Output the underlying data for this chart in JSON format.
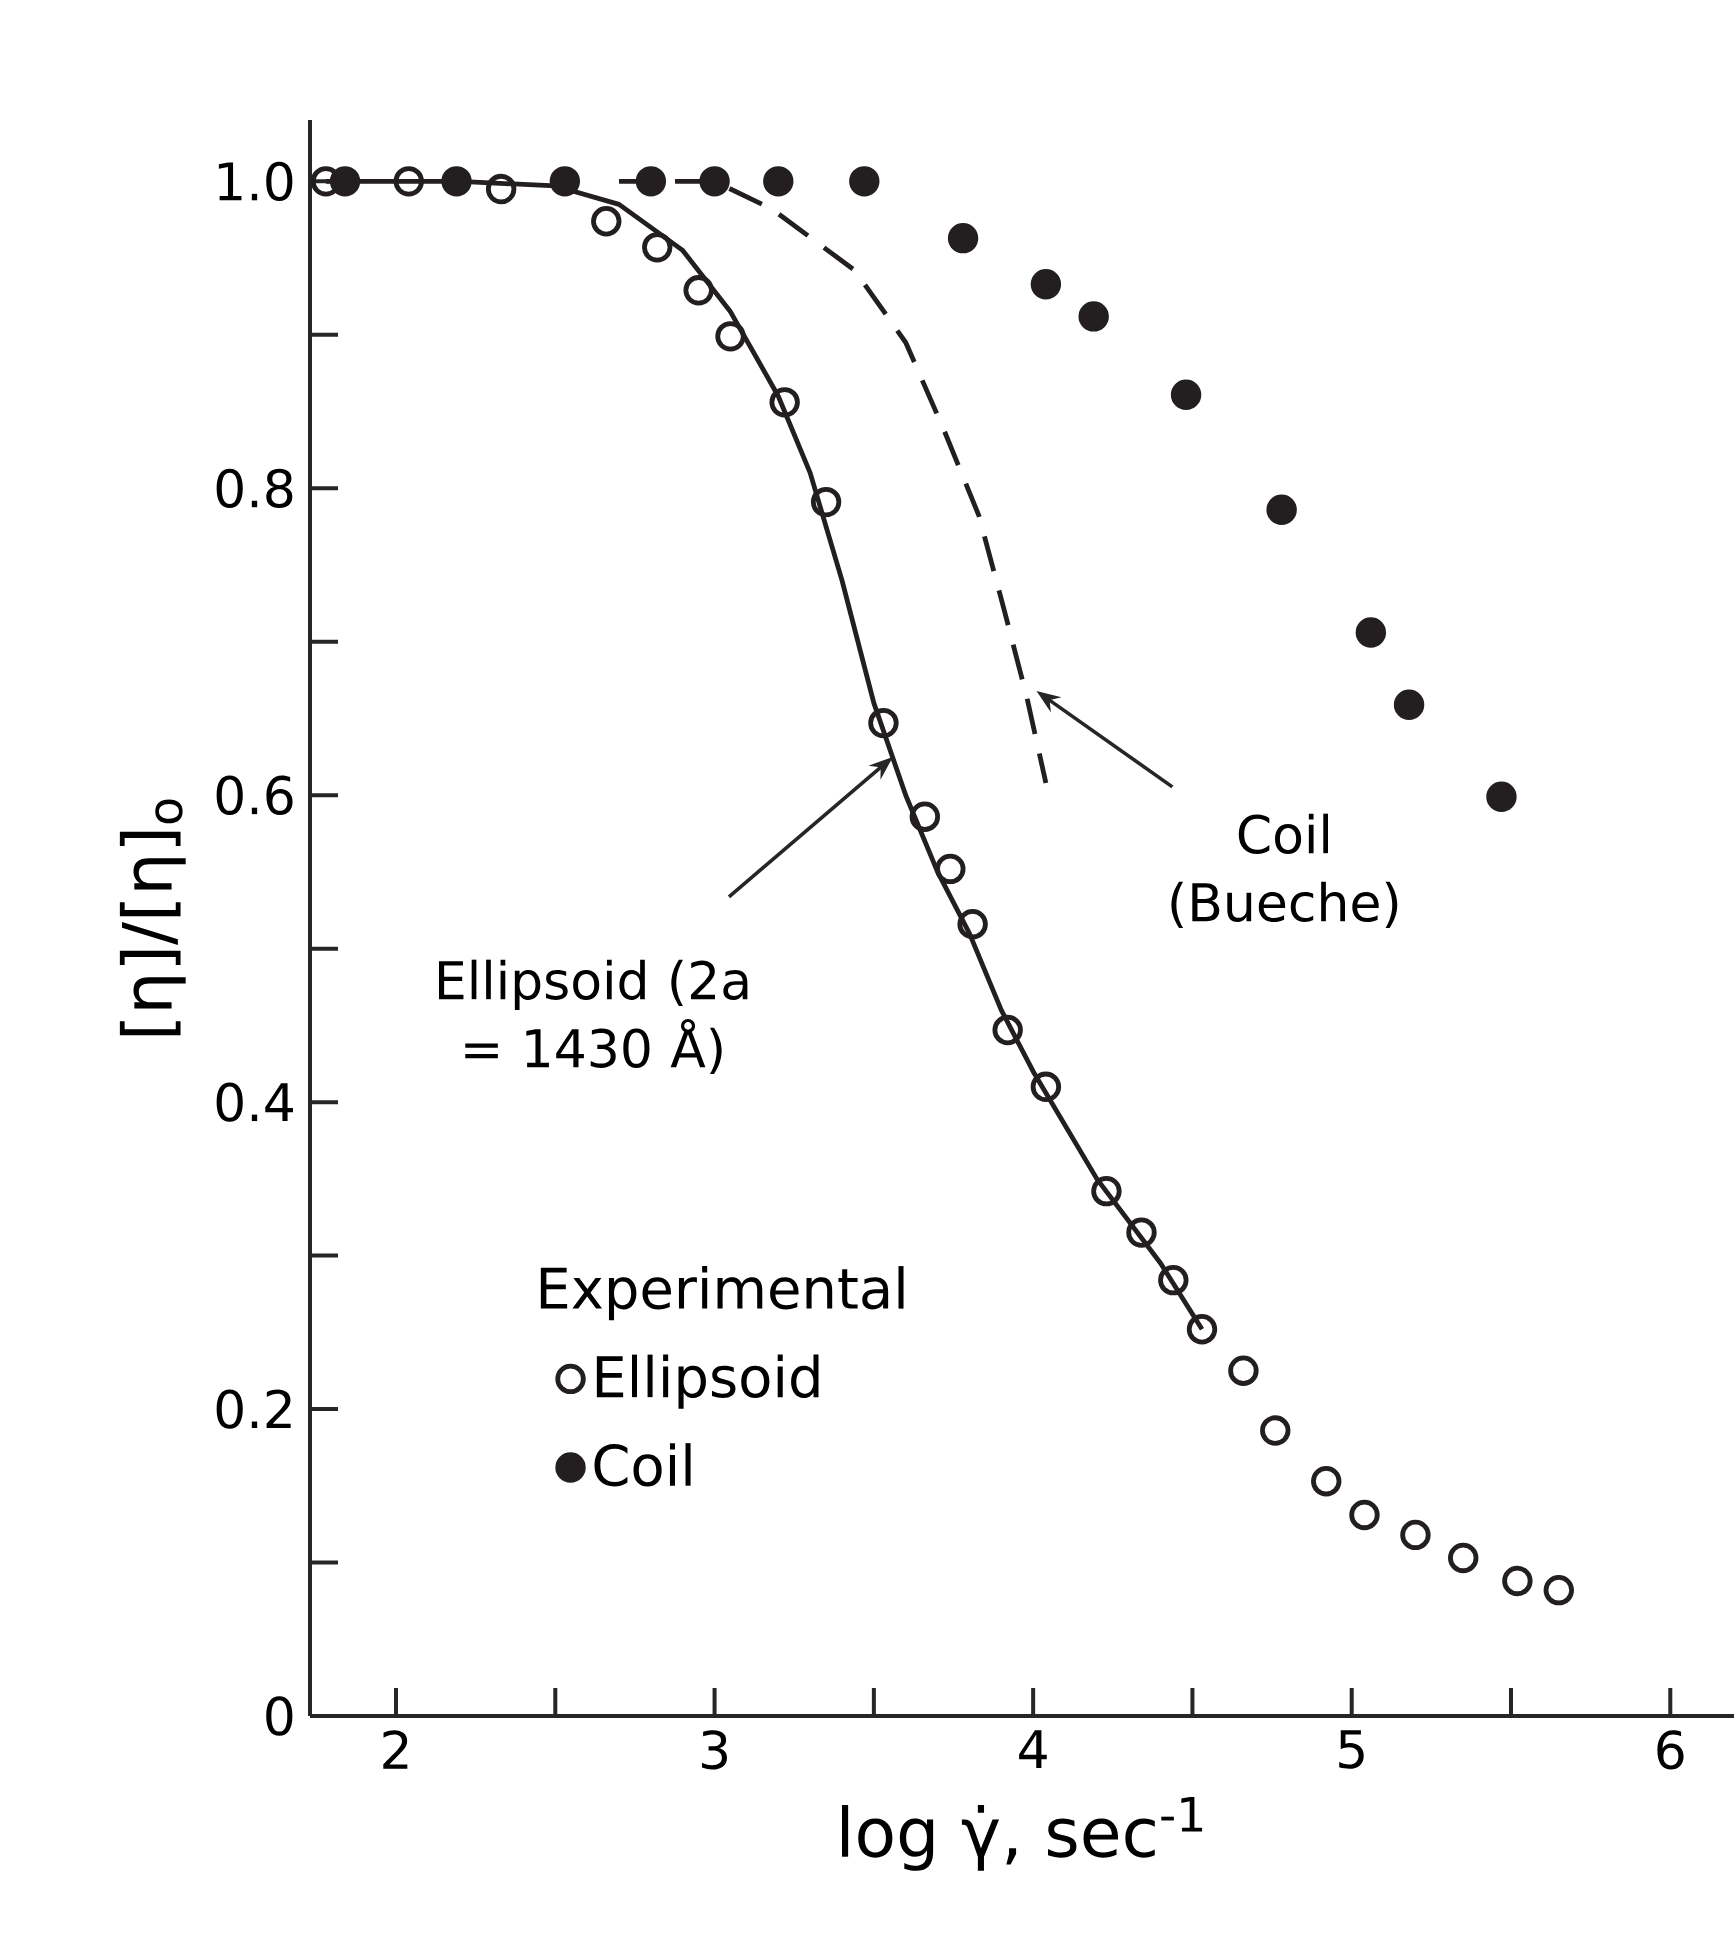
{
  "chart_data": {
    "type": "scatter",
    "xlabel": "log γ̇, sec$^{-1}$",
    "ylabel": "[η]/[η]$_{o}$",
    "legend_title": "Experimental",
    "legend": "bottom left",
    "xlim": [
      1.73,
      6.2
    ],
    "ylim": [
      0,
      1.04
    ],
    "xticks": [
      2,
      {
        "value": 2.5,
        "label": null
      },
      3,
      {
        "value": 3.5,
        "label": null
      },
      4,
      {
        "value": 4.5,
        "label": null
      },
      5,
      {
        "value": 5.5,
        "label": null
      },
      6
    ],
    "yticks": [
      0,
      {
        "value": 0.1,
        "label": null
      },
      0.2,
      {
        "value": 0.3,
        "label": null
      },
      0.4,
      {
        "value": 0.5,
        "label": null
      },
      0.6,
      {
        "value": 0.7,
        "label": null
      },
      0.8,
      {
        "value": 0.9,
        "label": null
      },
      {
        "value": 1,
        "label": "1.0"
      }
    ],
    "series": [
      {
        "type": "line",
        "color": "#231f20",
        "line_style": "solid",
        "marker": "none",
        "x": [
          1.78,
          2.2,
          2.5,
          2.7,
          2.9,
          3.05,
          3.2,
          3.3,
          3.4,
          3.5,
          3.6,
          3.7,
          3.8,
          3.9,
          4.0,
          4.2,
          4.4,
          4.53
        ],
        "values": [
          1.0,
          1.0,
          0.997,
          0.985,
          0.955,
          0.915,
          0.86,
          0.81,
          0.74,
          0.66,
          0.6,
          0.55,
          0.51,
          0.46,
          0.42,
          0.35,
          0.295,
          0.252
        ]
      },
      {
        "type": "line",
        "color": "#231f20",
        "line_style": "dashed",
        "marker": "none",
        "x": [
          2.7,
          3.0,
          3.18,
          3.44,
          3.6,
          3.72,
          3.83,
          3.91,
          3.98,
          4.04
        ],
        "values": [
          1.0,
          1.0,
          0.982,
          0.942,
          0.895,
          0.838,
          0.782,
          0.72,
          0.664,
          0.608
        ]
      },
      {
        "name": "Ellipsoid",
        "color": "#231f20",
        "marker": "circle",
        "x": [
          1.78,
          2.04,
          2.33,
          2.66,
          2.82,
          2.95,
          3.05,
          3.22,
          3.35,
          3.53,
          3.66,
          3.74,
          3.81,
          3.92,
          4.04,
          4.23,
          4.34,
          4.44,
          4.53,
          4.66,
          4.76,
          4.92,
          5.04,
          5.2,
          5.35,
          5.52,
          5.65
        ],
        "values": [
          1.0,
          1.0,
          0.995,
          0.974,
          0.957,
          0.929,
          0.899,
          0.856,
          0.791,
          0.647,
          0.586,
          0.552,
          0.516,
          0.447,
          0.41,
          0.342,
          0.315,
          0.284,
          0.252,
          0.225,
          0.186,
          0.153,
          0.131,
          0.118,
          0.103,
          0.088,
          0.082
        ]
      },
      {
        "name": "Coil",
        "color": "#231f20",
        "x": [
          1.84,
          2.19,
          2.53,
          2.8,
          3.0,
          3.2,
          3.47,
          3.78,
          4.04,
          4.19,
          4.48,
          4.78,
          5.06,
          5.18,
          5.47
        ],
        "values": [
          1.0,
          1.0,
          1.0,
          1.0,
          1.0,
          1.0,
          1.0,
          0.963,
          0.933,
          0.912,
          0.861,
          0.786,
          0.706,
          0.659,
          0.599
        ]
      }
    ],
    "annotations": [
      {
        "text": "Ellipsoid (2a = 1430 Å)",
        "x": 3.56,
        "y": 0.625
      },
      {
        "text": "Coil (Bueche)",
        "x": 4.01,
        "y": 0.668
      }
    ]
  }
}
